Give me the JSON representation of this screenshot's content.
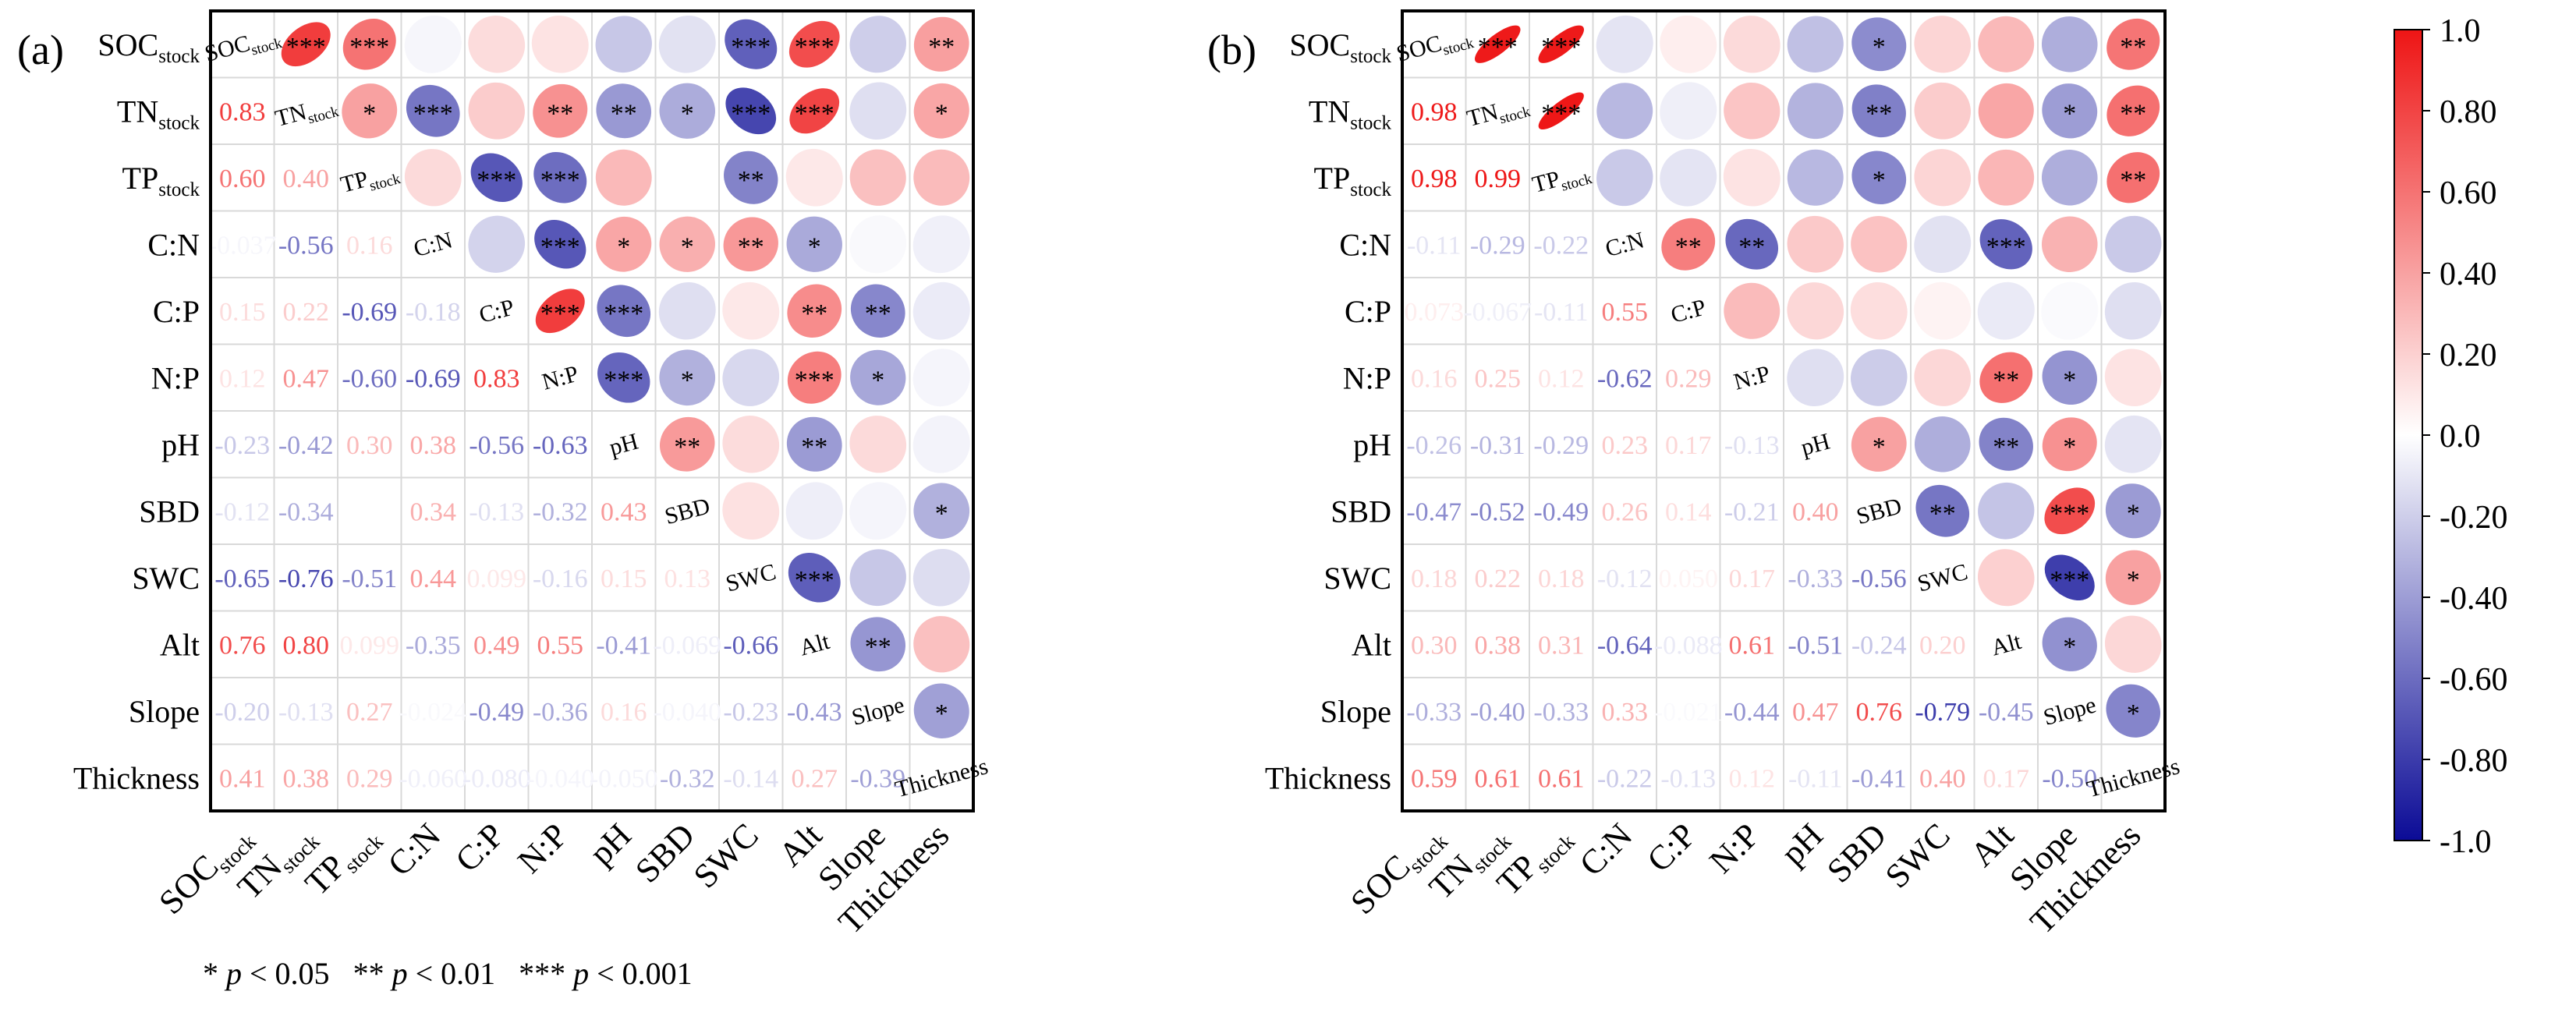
{
  "chart_data": {
    "type": "heatmap",
    "variables": [
      {
        "base": "SOC",
        "sub": "stock"
      },
      {
        "base": "TN",
        "sub": "stock"
      },
      {
        "base": "TP",
        "sub": "stock"
      },
      {
        "base": "C:N",
        "sub": ""
      },
      {
        "base": "C:P",
        "sub": ""
      },
      {
        "base": "N:P",
        "sub": ""
      },
      {
        "base": "pH",
        "sub": ""
      },
      {
        "base": "SBD",
        "sub": ""
      },
      {
        "base": "SWC",
        "sub": ""
      },
      {
        "base": "Alt",
        "sub": ""
      },
      {
        "base": "Slope",
        "sub": ""
      },
      {
        "base": "Thickness",
        "sub": ""
      }
    ],
    "panels": [
      {
        "label": "(a)",
        "lower_labels": [
          [],
          [
            "0.83"
          ],
          [
            "0.60",
            "0.40"
          ],
          [
            "-0.037",
            "-0.56",
            "0.16"
          ],
          [
            "0.15",
            "0.22",
            "-0.69",
            "-0.18"
          ],
          [
            "0.12",
            "0.47",
            "-0.60",
            "-0.69",
            "0.83"
          ],
          [
            "-0.23",
            "-0.42",
            "0.30",
            "0.38",
            "-0.56",
            "-0.63"
          ],
          [
            "-0.12",
            "-0.34",
            "",
            "0.34",
            "-0.13",
            "-0.32",
            "0.43"
          ],
          [
            "-0.65",
            "-0.76",
            "-0.51",
            "0.44",
            "0.099",
            "-0.16",
            "0.15",
            "0.13"
          ],
          [
            "0.76",
            "0.80",
            "0.099",
            "-0.35",
            "0.49",
            "0.55",
            "-0.41",
            "-0.069",
            "-0.66"
          ],
          [
            "-0.20",
            "-0.13",
            "0.27",
            "-0.024",
            "-0.49",
            "-0.36",
            "0.16",
            "-0.040",
            "-0.23",
            "-0.43"
          ],
          [
            "0.41",
            "0.38",
            "0.29",
            "-0.060",
            "-0.080",
            "-0.040",
            "-0.050",
            "-0.32",
            "-0.14",
            "0.27",
            "-0.39"
          ]
        ],
        "upper": [
          [
            null,
            0.83,
            0.6,
            -0.037,
            0.15,
            0.12,
            -0.23,
            -0.12,
            -0.65,
            0.76,
            -0.2,
            0.41
          ],
          [
            null,
            null,
            0.4,
            -0.56,
            0.22,
            0.47,
            -0.42,
            -0.34,
            -0.76,
            0.8,
            -0.13,
            0.38
          ],
          [
            null,
            null,
            null,
            0.16,
            -0.69,
            -0.6,
            0.3,
            0.0,
            -0.51,
            0.099,
            0.27,
            0.29
          ],
          [
            null,
            null,
            null,
            null,
            -0.18,
            -0.69,
            0.38,
            0.34,
            0.44,
            -0.35,
            -0.024,
            -0.06
          ],
          [
            null,
            null,
            null,
            null,
            null,
            0.83,
            -0.56,
            -0.13,
            0.099,
            0.49,
            -0.49,
            -0.08
          ],
          [
            null,
            null,
            null,
            null,
            null,
            null,
            -0.63,
            -0.32,
            -0.16,
            0.55,
            -0.36,
            -0.04
          ],
          [
            null,
            null,
            null,
            null,
            null,
            null,
            null,
            0.43,
            0.15,
            -0.41,
            0.16,
            -0.05
          ],
          [
            null,
            null,
            null,
            null,
            null,
            null,
            null,
            null,
            0.13,
            -0.069,
            -0.04,
            -0.32
          ],
          [
            null,
            null,
            null,
            null,
            null,
            null,
            null,
            null,
            null,
            -0.66,
            -0.23,
            -0.14
          ],
          [
            null,
            null,
            null,
            null,
            null,
            null,
            null,
            null,
            null,
            null,
            -0.43,
            0.27
          ],
          [
            null,
            null,
            null,
            null,
            null,
            null,
            null,
            null,
            null,
            null,
            null,
            -0.39
          ],
          [
            null,
            null,
            null,
            null,
            null,
            null,
            null,
            null,
            null,
            null,
            null,
            null
          ]
        ],
        "stars": [
          [
            null,
            "***",
            "***",
            "",
            "",
            "",
            "",
            "",
            "***",
            "***",
            "",
            "**"
          ],
          [
            null,
            null,
            "*",
            "***",
            "",
            "**",
            "**",
            "*",
            "***",
            "***",
            "",
            "*"
          ],
          [
            null,
            null,
            null,
            "",
            "***",
            "***",
            "",
            "",
            "**",
            "",
            "",
            ""
          ],
          [
            null,
            null,
            null,
            null,
            "",
            "***",
            "*",
            "*",
            "**",
            "*",
            "",
            ""
          ],
          [
            null,
            null,
            null,
            null,
            null,
            "***",
            "***",
            "",
            "",
            "**",
            "**",
            ""
          ],
          [
            null,
            null,
            null,
            null,
            null,
            null,
            "***",
            "*",
            "",
            "***",
            "*",
            ""
          ],
          [
            null,
            null,
            null,
            null,
            null,
            null,
            null,
            "**",
            "",
            "**",
            "",
            ""
          ],
          [
            null,
            null,
            null,
            null,
            null,
            null,
            null,
            null,
            "",
            "",
            "",
            "*"
          ],
          [
            null,
            null,
            null,
            null,
            null,
            null,
            null,
            null,
            null,
            "***",
            "",
            ""
          ],
          [
            null,
            null,
            null,
            null,
            null,
            null,
            null,
            null,
            null,
            null,
            "**",
            ""
          ],
          [
            null,
            null,
            null,
            null,
            null,
            null,
            null,
            null,
            null,
            null,
            null,
            "*"
          ],
          [
            null,
            null,
            null,
            null,
            null,
            null,
            null,
            null,
            null,
            null,
            null,
            null
          ]
        ]
      },
      {
        "label": "(b)",
        "lower_labels": [
          [],
          [
            "0.98"
          ],
          [
            "0.98",
            "0.99"
          ],
          [
            "-0.11",
            "-0.29",
            "-0.22"
          ],
          [
            "0.073",
            "-0.067",
            "-0.11",
            "0.55"
          ],
          [
            "0.16",
            "0.25",
            "0.12",
            "-0.62",
            "0.29"
          ],
          [
            "-0.26",
            "-0.31",
            "-0.29",
            "0.23",
            "0.17",
            "-0.13"
          ],
          [
            "-0.47",
            "-0.52",
            "-0.49",
            "0.26",
            "0.14",
            "-0.21",
            "0.40"
          ],
          [
            "0.18",
            "0.22",
            "0.18",
            "-0.12",
            "0.050",
            "0.17",
            "-0.33",
            "-0.56"
          ],
          [
            "0.30",
            "0.38",
            "0.31",
            "-0.64",
            "-0.088",
            "0.61",
            "-0.51",
            "-0.24",
            "0.20"
          ],
          [
            "-0.33",
            "-0.40",
            "-0.33",
            "0.33",
            "-0.021",
            "-0.44",
            "0.47",
            "0.76",
            "-0.79",
            "-0.45"
          ],
          [
            "0.59",
            "0.61",
            "0.61",
            "-0.22",
            "-0.13",
            "0.12",
            "-0.11",
            "-0.41",
            "0.40",
            "0.17",
            "-0.50"
          ]
        ],
        "upper": [
          [
            null,
            0.98,
            0.98,
            -0.11,
            0.073,
            0.16,
            -0.26,
            -0.47,
            0.18,
            0.3,
            -0.33,
            0.59
          ],
          [
            null,
            null,
            0.99,
            -0.29,
            -0.067,
            0.25,
            -0.31,
            -0.52,
            0.22,
            0.38,
            -0.4,
            0.61
          ],
          [
            null,
            null,
            null,
            -0.22,
            -0.11,
            0.12,
            -0.29,
            -0.49,
            0.18,
            0.31,
            -0.33,
            0.61
          ],
          [
            null,
            null,
            null,
            null,
            0.55,
            -0.62,
            0.23,
            0.26,
            -0.12,
            -0.64,
            0.33,
            -0.22
          ],
          [
            null,
            null,
            null,
            null,
            null,
            0.29,
            0.17,
            0.14,
            0.05,
            -0.088,
            -0.021,
            -0.13
          ],
          [
            null,
            null,
            null,
            null,
            null,
            null,
            -0.13,
            -0.21,
            0.17,
            0.61,
            -0.44,
            0.12
          ],
          [
            null,
            null,
            null,
            null,
            null,
            null,
            null,
            0.4,
            -0.33,
            -0.51,
            0.47,
            -0.11
          ],
          [
            null,
            null,
            null,
            null,
            null,
            null,
            null,
            null,
            -0.56,
            -0.24,
            0.76,
            -0.41
          ],
          [
            null,
            null,
            null,
            null,
            null,
            null,
            null,
            null,
            null,
            0.2,
            -0.79,
            0.4
          ],
          [
            null,
            null,
            null,
            null,
            null,
            null,
            null,
            null,
            null,
            null,
            -0.45,
            0.17
          ],
          [
            null,
            null,
            null,
            null,
            null,
            null,
            null,
            null,
            null,
            null,
            null,
            -0.5
          ],
          [
            null,
            null,
            null,
            null,
            null,
            null,
            null,
            null,
            null,
            null,
            null,
            null
          ]
        ],
        "stars": [
          [
            null,
            "***",
            "***",
            "",
            "",
            "",
            "",
            "*",
            "",
            "",
            "",
            "**"
          ],
          [
            null,
            null,
            "***",
            "",
            "",
            "",
            "",
            "**",
            "",
            "",
            "*",
            "**"
          ],
          [
            null,
            null,
            null,
            "",
            "",
            "",
            "",
            "*",
            "",
            "",
            "",
            "**"
          ],
          [
            null,
            null,
            null,
            null,
            "**",
            "**",
            "",
            "",
            "",
            "***",
            "",
            ""
          ],
          [
            null,
            null,
            null,
            null,
            null,
            "",
            "",
            "",
            "",
            "",
            "",
            ""
          ],
          [
            null,
            null,
            null,
            null,
            null,
            null,
            "",
            "",
            "",
            "**",
            "*",
            ""
          ],
          [
            null,
            null,
            null,
            null,
            null,
            null,
            null,
            "*",
            "",
            "**",
            "*",
            ""
          ],
          [
            null,
            null,
            null,
            null,
            null,
            null,
            null,
            null,
            "**",
            "",
            "***",
            "*"
          ],
          [
            null,
            null,
            null,
            null,
            null,
            null,
            null,
            null,
            null,
            "",
            "***",
            "*"
          ],
          [
            null,
            null,
            null,
            null,
            null,
            null,
            null,
            null,
            null,
            null,
            "*",
            ""
          ],
          [
            null,
            null,
            null,
            null,
            null,
            null,
            null,
            null,
            null,
            null,
            null,
            "*"
          ],
          [
            null,
            null,
            null,
            null,
            null,
            null,
            null,
            null,
            null,
            null,
            null,
            null
          ]
        ]
      }
    ],
    "colorbar": {
      "range": [
        -1.0,
        1.0
      ],
      "ticks": [
        "1.0",
        "0.80",
        "0.60",
        "0.40",
        "0.20",
        "0.0",
        "-0.20",
        "-0.40",
        "-0.60",
        "-0.80",
        "-1.0"
      ],
      "colors": {
        "negative": "#0b0b96",
        "zero": "#ffffff",
        "positive": "#ee1515"
      }
    },
    "footnote": {
      "s1": "*",
      "p1": "p",
      "t1": " < 0.05",
      "s2": "**",
      "p2": "p",
      "t2": " < 0.01",
      "s3": "***",
      "p3": "p",
      "t3": " < 0.001"
    }
  }
}
